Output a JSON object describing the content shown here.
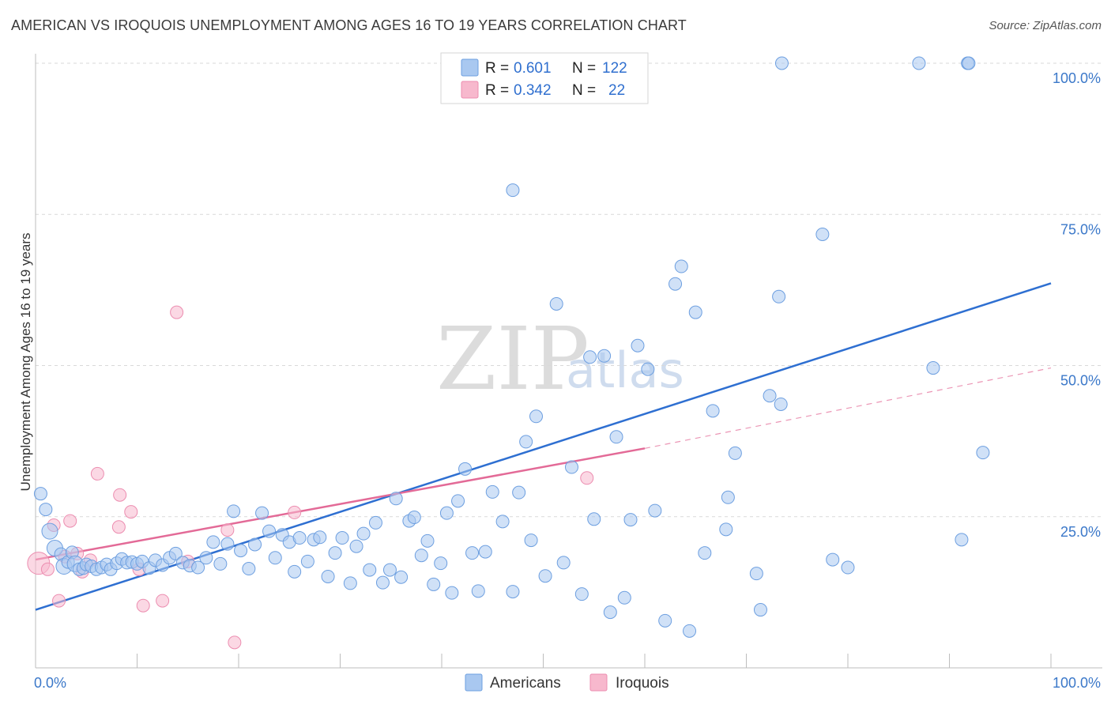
{
  "header": {
    "title": "AMERICAN VS IROQUOIS UNEMPLOYMENT AMONG AGES 16 TO 19 YEARS CORRELATION CHART",
    "source": "Source: ZipAtlas.com"
  },
  "watermark": {
    "zip": "ZIP",
    "atlas": "atlas"
  },
  "legend_top": {
    "rows": [
      {
        "r_label": "R =",
        "r_value": "0.601",
        "n_label": "N =",
        "n_value": "122",
        "color": "#a9c8f0"
      },
      {
        "r_label": "R =",
        "r_value": "0.342",
        "n_label": "N =",
        "n_value": "22",
        "color": "#f7b8cd"
      }
    ]
  },
  "legend_bottom": {
    "items": [
      {
        "label": "Americans",
        "color": "#a9c8f0"
      },
      {
        "label": "Iroquois",
        "color": "#f7b8cd"
      }
    ]
  },
  "colors": {
    "americans_fill": "#a9c8f0",
    "americans_stroke": "#6d9fe0",
    "americans_line": "#2e6fd1",
    "iroquois_fill": "#f7b8cd",
    "iroquois_stroke": "#ec8db0",
    "iroquois_line": "#e36a97",
    "tick_text": "#3b78c9"
  },
  "chart_data": {
    "type": "scatter",
    "title": "AMERICAN VS IROQUOIS UNEMPLOYMENT AMONG AGES 16 TO 19 YEARS CORRELATION CHART",
    "xlabel": "",
    "ylabel": "Unemployment Among Ages 16 to 19 years",
    "xlim": [
      0,
      100
    ],
    "ylim": [
      0,
      100
    ],
    "x_tick_labels": [
      {
        "value": 0,
        "label": "0.0%"
      },
      {
        "value": 100,
        "label": "100.0%"
      }
    ],
    "y_tick_labels": [
      {
        "value": 25,
        "label": "25.0%"
      },
      {
        "value": 50,
        "label": "50.0%"
      },
      {
        "value": 75,
        "label": "75.0%"
      },
      {
        "value": 100,
        "label": "100.0%"
      }
    ],
    "grid": true,
    "legend_position": "top-center",
    "series": [
      {
        "name": "Americans",
        "r": 0.601,
        "n": 122,
        "trend": {
          "x": [
            0,
            100
          ],
          "y": [
            9.6,
            63.6
          ],
          "style": "solid"
        },
        "points": [
          [
            0.5,
            28.8
          ],
          [
            1,
            26.2
          ],
          [
            1.4,
            22.6
          ],
          [
            1.9,
            19.8
          ],
          [
            2.5,
            18.8
          ],
          [
            2.8,
            16.8
          ],
          [
            3.2,
            17.5
          ],
          [
            3.6,
            19.1
          ],
          [
            3.9,
            17.2
          ],
          [
            4.3,
            16.3
          ],
          [
            4.7,
            16.5
          ],
          [
            5,
            17.1
          ],
          [
            5.5,
            16.8
          ],
          [
            6,
            16.3
          ],
          [
            6.5,
            16.6
          ],
          [
            7,
            17.1
          ],
          [
            7.4,
            16.3
          ],
          [
            8,
            17.3
          ],
          [
            8.5,
            18
          ],
          [
            9,
            17.4
          ],
          [
            9.5,
            17.5
          ],
          [
            10,
            17.2
          ],
          [
            10.5,
            17.6
          ],
          [
            11.2,
            16.5
          ],
          [
            11.8,
            17.8
          ],
          [
            12.5,
            17
          ],
          [
            13.2,
            18.2
          ],
          [
            13.8,
            18.9
          ],
          [
            14.5,
            17.4
          ],
          [
            15.2,
            16.9
          ],
          [
            16,
            16.6
          ],
          [
            16.8,
            18.2
          ],
          [
            17.5,
            20.8
          ],
          [
            18.2,
            17.2
          ],
          [
            18.9,
            20.5
          ],
          [
            19.5,
            25.9
          ],
          [
            20.2,
            19.4
          ],
          [
            21,
            16.4
          ],
          [
            21.6,
            20.4
          ],
          [
            22.3,
            25.6
          ],
          [
            23,
            22.6
          ],
          [
            23.6,
            18.2
          ],
          [
            24.3,
            22
          ],
          [
            25,
            20.8
          ],
          [
            25.5,
            15.9
          ],
          [
            26,
            21.5
          ],
          [
            26.8,
            17.6
          ],
          [
            27.4,
            21.2
          ],
          [
            28,
            21.6
          ],
          [
            28.8,
            15.1
          ],
          [
            29.5,
            19
          ],
          [
            30.2,
            21.5
          ],
          [
            31,
            14
          ],
          [
            31.6,
            20.1
          ],
          [
            32.3,
            22.2
          ],
          [
            32.9,
            16.2
          ],
          [
            33.5,
            24
          ],
          [
            34.2,
            14.1
          ],
          [
            34.9,
            16.2
          ],
          [
            35.5,
            28
          ],
          [
            36,
            15
          ],
          [
            36.8,
            24.3
          ],
          [
            37.3,
            24.9
          ],
          [
            38,
            18.6
          ],
          [
            38.6,
            21
          ],
          [
            39.2,
            13.8
          ],
          [
            39.9,
            17.3
          ],
          [
            40.5,
            25.6
          ],
          [
            41,
            12.4
          ],
          [
            41.6,
            27.6
          ],
          [
            42.3,
            32.9
          ],
          [
            43,
            19
          ],
          [
            43.6,
            12.7
          ],
          [
            44.3,
            19.2
          ],
          [
            45,
            29.1
          ],
          [
            46,
            24.2
          ],
          [
            47,
            12.6
          ],
          [
            47.6,
            29
          ],
          [
            48.3,
            37.4
          ],
          [
            48.8,
            21.1
          ],
          [
            49.3,
            41.6
          ],
          [
            50.2,
            15.2
          ],
          [
            51.3,
            60.2
          ],
          [
            52,
            17.4
          ],
          [
            52.8,
            33.2
          ],
          [
            53.8,
            12.2
          ],
          [
            54.6,
            51.4
          ],
          [
            55,
            24.6
          ],
          [
            56,
            51.6
          ],
          [
            56.6,
            9.2
          ],
          [
            57.2,
            38.2
          ],
          [
            58,
            11.6
          ],
          [
            58.6,
            24.5
          ],
          [
            59.3,
            53.3
          ],
          [
            60.3,
            49.4
          ],
          [
            61,
            26
          ],
          [
            62,
            7.8
          ],
          [
            63,
            63.5
          ],
          [
            63.6,
            66.4
          ],
          [
            64.4,
            6.1
          ],
          [
            65,
            58.8
          ],
          [
            65.9,
            19
          ],
          [
            66.7,
            42.5
          ],
          [
            68,
            22.9
          ],
          [
            68.2,
            28.2
          ],
          [
            68.9,
            35.5
          ],
          [
            71,
            15.6
          ],
          [
            71.4,
            9.6
          ],
          [
            72.3,
            45
          ],
          [
            77.5,
            71.7
          ],
          [
            78.5,
            17.9
          ],
          [
            80,
            16.6
          ],
          [
            47,
            79
          ],
          [
            73.2,
            61.4
          ],
          [
            73.4,
            43.6
          ],
          [
            88.4,
            49.6
          ],
          [
            91.2,
            21.2
          ],
          [
            73.5,
            100
          ],
          [
            87,
            100
          ],
          [
            91.8,
            100
          ],
          [
            91.9,
            100
          ],
          [
            93.3,
            35.6
          ]
        ]
      },
      {
        "name": "Iroquois",
        "r": 0.342,
        "n": 22,
        "trend": {
          "x": [
            0,
            60
          ],
          "y": [
            17.9,
            36.3
          ],
          "style": "solid",
          "extended_x": [
            60,
            100
          ],
          "extended_y": [
            36.3,
            49.6
          ],
          "extended_style": "dashed"
        },
        "points": [
          [
            0.3,
            17.3
          ],
          [
            1.2,
            16.3
          ],
          [
            1.8,
            23.6
          ],
          [
            2.3,
            11.1
          ],
          [
            2.9,
            18.4
          ],
          [
            3.4,
            24.3
          ],
          [
            4.1,
            18.9
          ],
          [
            4.6,
            15.9
          ],
          [
            5.4,
            17.8
          ],
          [
            6.1,
            32.1
          ],
          [
            8.2,
            23.3
          ],
          [
            9.4,
            25.8
          ],
          [
            10.2,
            16.3
          ],
          [
            10.6,
            10.3
          ],
          [
            12.5,
            11.1
          ],
          [
            13.9,
            58.8
          ],
          [
            15,
            17.6
          ],
          [
            18.9,
            22.8
          ],
          [
            19.6,
            4.2
          ],
          [
            25.5,
            25.7
          ],
          [
            54.3,
            31.4
          ],
          [
            8.3,
            28.6
          ]
        ]
      }
    ]
  }
}
